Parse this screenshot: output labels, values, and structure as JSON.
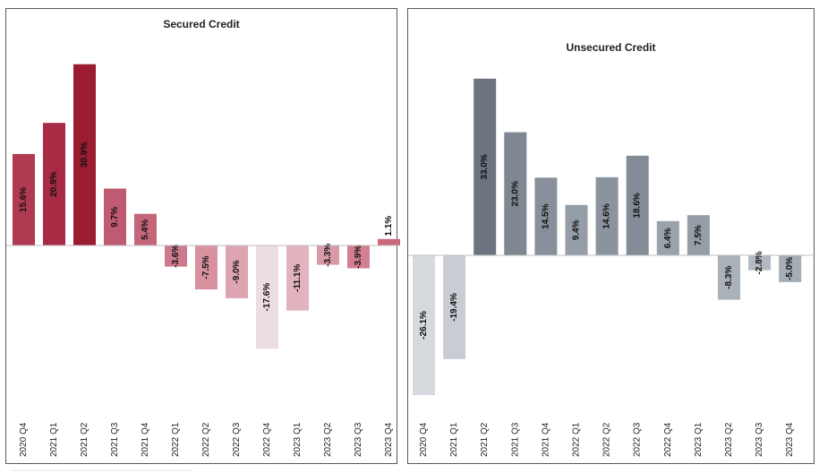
{
  "chart_data": [
    {
      "type": "bar",
      "title": "Secured Credit",
      "categories": [
        "2020 Q4",
        "2021 Q1",
        "2021 Q2",
        "2021 Q3",
        "2021 Q4",
        "2022 Q1",
        "2022 Q2",
        "2022 Q3",
        "2022 Q4",
        "2023 Q1",
        "2023 Q2",
        "2023 Q3",
        "2023 Q4"
      ],
      "values": [
        15.6,
        20.9,
        30.9,
        9.7,
        5.4,
        -3.6,
        -7.5,
        -9.0,
        -17.6,
        -11.1,
        -3.3,
        -3.9,
        1.1
      ],
      "labels": [
        "15.6%",
        "20.9%",
        "30.9%",
        "9.7%",
        "5.4%",
        "-3.6%",
        "-7.5%",
        "-9.0%",
        "-17.6%",
        "-11.1%",
        "-3.3%",
        "-3.9%",
        "1.1%"
      ],
      "colors": [
        "#b03a52",
        "#a82a45",
        "#9b1b31",
        "#c05a70",
        "#c4667a",
        "#cc7b8c",
        "#d8929f",
        "#dda5b1",
        "#ecdde0",
        "#e2b3bd",
        "#d89aa7",
        "#d27f91",
        "#c9687b"
      ],
      "ylim": [
        -26,
        34
      ],
      "grid": false,
      "legend": false
    },
    {
      "type": "bar",
      "title": "Unsecured Credit",
      "categories": [
        "2020 Q4",
        "2021 Q1",
        "2021 Q2",
        "2021 Q3",
        "2021 Q4",
        "2022 Q1",
        "2022 Q2",
        "2022 Q3",
        "2022 Q4",
        "2023 Q1",
        "2023 Q2",
        "2023 Q3",
        "2023 Q4"
      ],
      "values": [
        -26.1,
        -19.4,
        33.0,
        23.0,
        14.5,
        9.4,
        14.6,
        18.6,
        6.4,
        7.5,
        -8.3,
        -2.8,
        -5.0
      ],
      "labels": [
        "-26.1%",
        "-19.4%",
        "33.0%",
        "23.0%",
        "14.5%",
        "9.4%",
        "14.6%",
        "18.6%",
        "6.4%",
        "7.5%",
        "-8.3%",
        "-2.8%",
        "-5.0%"
      ],
      "colors": [
        "#d6d9de",
        "#c9cdd3",
        "#6b747f",
        "#7e8792",
        "#88919b",
        "#959da6",
        "#8b949e",
        "#848d97",
        "#9aa2ab",
        "#959da6",
        "#aab1b8",
        "#b4bac1",
        "#a6adb5"
      ],
      "ylim": [
        -27,
        35
      ],
      "grid": false,
      "legend": false
    }
  ]
}
